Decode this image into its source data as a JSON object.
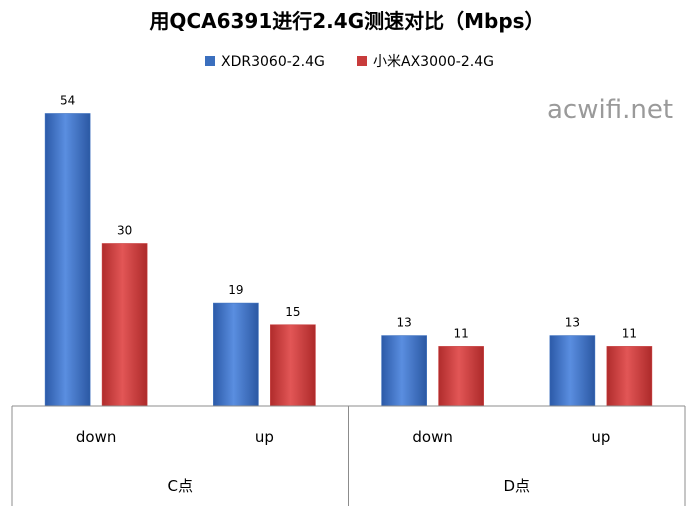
{
  "chart_data": {
    "type": "bar",
    "title": "用QCA6391进行2.4G测速对比（Mbps）",
    "groups": [
      {
        "label": "C点",
        "categories": [
          "down",
          "up"
        ]
      },
      {
        "label": "D点",
        "categories": [
          "down",
          "up"
        ]
      }
    ],
    "categories": [
      "down",
      "up",
      "down",
      "up"
    ],
    "series": [
      {
        "name": "XDR3060-2.4G",
        "values": [
          54,
          19,
          13,
          13
        ],
        "color": "#3b6fbe"
      },
      {
        "name": "小米AX3000-2.4G",
        "values": [
          30,
          15,
          11,
          11
        ],
        "color": "#c83c3c"
      }
    ],
    "ylim": [
      0,
      60
    ],
    "grid": false,
    "legend_position": "top-center",
    "watermark": "acwifi.net"
  }
}
